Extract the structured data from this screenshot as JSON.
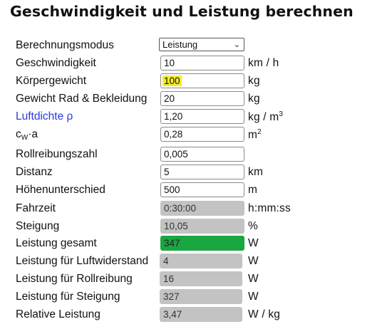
{
  "title": "Geschwindigkeit und Leistung berechnen",
  "rows": {
    "mode": {
      "label": "Berechnungsmodus",
      "value": "Leistung"
    },
    "speed": {
      "label": "Geschwindigkeit",
      "value": "10",
      "unit": "km / h"
    },
    "weight": {
      "label": "Körpergewicht",
      "value": "100",
      "unit": "kg"
    },
    "bike": {
      "label": "Gewicht Rad & Bekleidung",
      "value": "20",
      "unit": "kg"
    },
    "density": {
      "label": "Luftdichte ρ",
      "value": "1,20",
      "unit_main": "kg / m",
      "unit_sup": "3"
    },
    "cwa": {
      "label_c": "c",
      "label_sub": "W",
      "label_rest": "·a",
      "value": "0,28",
      "unit_main": "m",
      "unit_sup": "2"
    },
    "roll": {
      "label": "Rollreibungszahl",
      "value": "0,005"
    },
    "distance": {
      "label": "Distanz",
      "value": "5",
      "unit": "km"
    },
    "elevation": {
      "label": "Höhenunterschied",
      "value": "500",
      "unit": "m"
    },
    "time": {
      "label": "Fahrzeit",
      "value": "0:30:00",
      "unit": "h:mm:ss"
    },
    "slope": {
      "label": "Steigung",
      "value": "10,05",
      "unit": "%"
    },
    "power_total": {
      "label": "Leistung gesamt",
      "value": "347",
      "unit": "W"
    },
    "power_air": {
      "label": "Leistung für Luftwiderstand",
      "value": "4",
      "unit": "W"
    },
    "power_roll": {
      "label": "Leistung für Rollreibung",
      "value": "16",
      "unit": "W"
    },
    "power_climb": {
      "label": "Leistung für Steigung",
      "value": "327",
      "unit": "W"
    },
    "power_rel": {
      "label": "Relative Leistung",
      "value": "3,47",
      "unit": "W / kg"
    }
  },
  "colors": {
    "readonly_bg": "#c3c3c3",
    "total_bg": "#1aa640",
    "highlight": "#f3ec2c",
    "link": "#2a3ad8"
  }
}
